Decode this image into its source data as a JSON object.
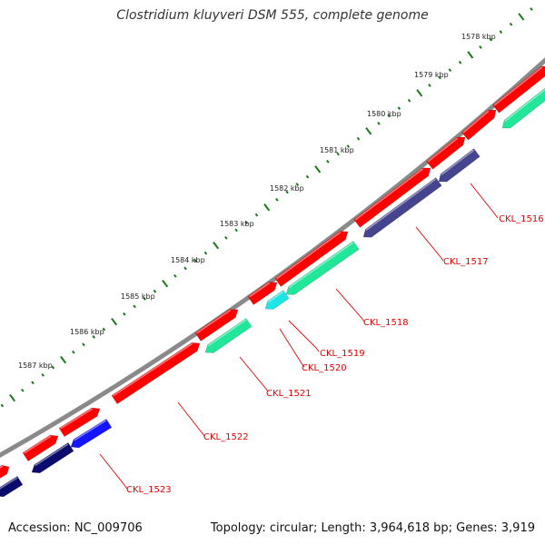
{
  "header": {
    "title": "Clostridium kluyveri DSM 555, complete genome"
  },
  "footer": {
    "accession": "Accession: NC_009706",
    "stats": "Topology: circular; Length: 3,964,618 bp; Genes: 3,919"
  },
  "colors": {
    "backbone": "#8a8a8a",
    "forward_gene": "#ff0000",
    "reverse_green": "#22e69a",
    "reverse_navy": "#45448f",
    "reverse_dark": "#0b0b6e",
    "reverse_blue": "#1414ff",
    "reverse_cyan": "#1ee6e6",
    "tick": "#1a7a1a",
    "label": "#e30000"
  },
  "scale_labels": [
    "1578 kbp",
    "1579 kbp",
    "1580 kbp",
    "1581 kbp",
    "1582 kbp",
    "1583 kbp",
    "1584 kbp",
    "1585 kbp",
    "1586 kbp",
    "1587 kbp"
  ],
  "gene_labels": [
    "CKL_1516",
    "CKL_1517",
    "CKL_1518",
    "CKL_1519",
    "CKL_1520",
    "CKL_1521",
    "CKL_1522",
    "CKL_1523"
  ]
}
